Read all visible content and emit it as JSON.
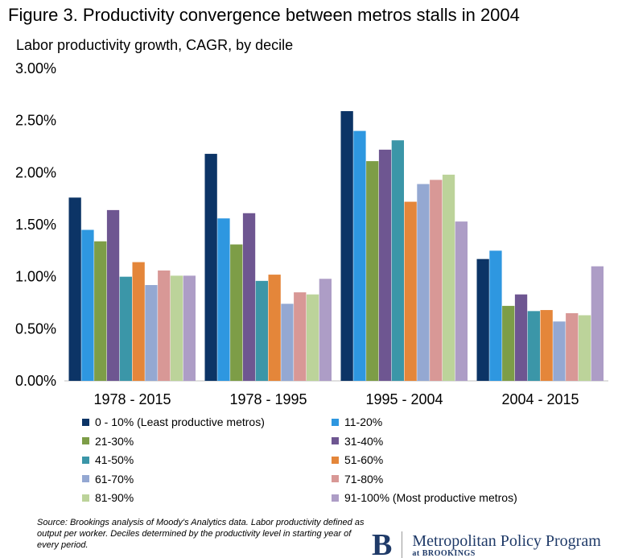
{
  "chart_data": {
    "type": "bar",
    "title": "Figure 3. Productivity convergence between metros stalls in 2004",
    "subtitle": "Labor productivity growth, CAGR, by decile",
    "xlabel": "",
    "ylabel": "",
    "ylim": [
      0,
      3.0
    ],
    "yticks": [
      "0.00%",
      "0.50%",
      "1.00%",
      "1.50%",
      "2.00%",
      "2.50%",
      "3.00%"
    ],
    "categories": [
      "1978 - 2015",
      "1978 - 1995",
      "1995 - 2004",
      "2004 - 2015"
    ],
    "legend_position": "bottom",
    "series": [
      {
        "name": "0 - 10% (Least productive metros)",
        "color": "#0c3466",
        "values": [
          1.76,
          2.18,
          2.59,
          1.17
        ]
      },
      {
        "name": "11-20%",
        "color": "#2e97e0",
        "values": [
          1.45,
          1.56,
          2.4,
          1.25
        ]
      },
      {
        "name": "21-30%",
        "color": "#7d9d47",
        "values": [
          1.34,
          1.31,
          2.11,
          0.72
        ]
      },
      {
        "name": "31-40%",
        "color": "#6e5691",
        "values": [
          1.64,
          1.61,
          2.22,
          0.83
        ]
      },
      {
        "name": "41-50%",
        "color": "#3b96a8",
        "values": [
          1.0,
          0.96,
          2.31,
          0.67
        ]
      },
      {
        "name": "51-60%",
        "color": "#e4863a",
        "values": [
          1.14,
          1.02,
          1.72,
          0.68
        ]
      },
      {
        "name": "61-70%",
        "color": "#94a8d2",
        "values": [
          0.92,
          0.74,
          1.89,
          0.57
        ]
      },
      {
        "name": "71-80%",
        "color": "#d89896",
        "values": [
          1.06,
          0.85,
          1.93,
          0.65
        ]
      },
      {
        "name": "81-90%",
        "color": "#bcd39a",
        "values": [
          1.01,
          0.83,
          1.98,
          0.63
        ]
      },
      {
        "name": "91-100% (Most productive metros)",
        "color": "#ad9dc6",
        "values": [
          1.01,
          0.98,
          1.53,
          1.1
        ]
      }
    ]
  },
  "source": "Source: Brookings analysis of Moody's Analytics data. Labor productivity defined as output per worker. Deciles determined by the productivity level in starting year of every period.",
  "logo": {
    "letter": "B",
    "name": "Metropolitan Policy Program",
    "sub": "at BROOKINGS"
  }
}
